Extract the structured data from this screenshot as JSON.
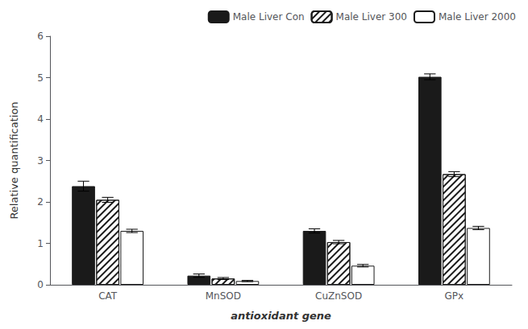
{
  "chart_data": {
    "type": "bar",
    "categories": [
      "CAT",
      "MnSOD",
      "CuZnSOD",
      "GPx"
    ],
    "series": [
      {
        "name": "Male Liver Con",
        "color": "#1a1a1a",
        "values": [
          2.38,
          0.22,
          1.3,
          5.02
        ],
        "errors": [
          0.12,
          0.04,
          0.05,
          0.07
        ]
      },
      {
        "name": "Male Liver 300",
        "color": "#ffffff",
        "values": [
          2.05,
          0.15,
          1.03,
          2.67
        ],
        "errors": [
          0.06,
          0.025,
          0.04,
          0.06
        ]
      },
      {
        "name": "Male Liver 2000",
        "color": "#ffffff",
        "values": [
          1.3,
          0.09,
          0.46,
          1.37
        ],
        "errors": [
          0.04,
          0.015,
          0.03,
          0.04
        ]
      }
    ],
    "xlabel": "antioxidant gene",
    "ylabel": "Relative quantification",
    "ylim": [
      0,
      6
    ],
    "yticks": [
      0,
      1,
      2,
      3,
      4,
      5,
      6
    ],
    "grid": false,
    "legend": "upper right"
  }
}
